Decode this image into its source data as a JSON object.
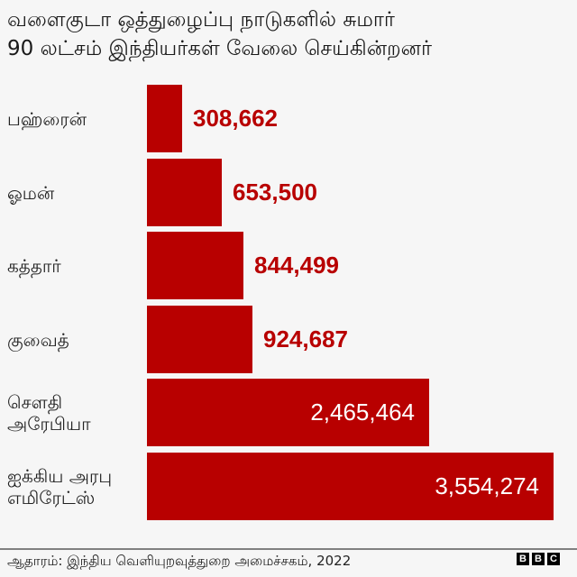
{
  "title": {
    "line1": "வளைகுடா ஒத்துழைப்பு நாடுகளில் சுமார்",
    "line2": "90 லட்சம் இந்தியர்கள் வேலை செய்கின்றனர்"
  },
  "colors": {
    "bar": "#b80000",
    "value_outside": "#b80000",
    "value_inside": "#ffffff",
    "background": "#f6f6f6"
  },
  "chart_data": {
    "type": "bar",
    "orientation": "horizontal",
    "title": "வளைகுடா ஒத்துழைப்பு நாடுகளில் சுமார் 90 லட்சம் இந்தியர்கள் வேலை செய்கின்றனர்",
    "categories": [
      "பஹ்ரைன்",
      "ஓமன்",
      "கத்தார்",
      "குவைத்",
      "சௌதி அரேபியா",
      "ஐக்கிய அரபு எமிரேட்ஸ்"
    ],
    "values": [
      308662,
      653500,
      844499,
      924687,
      2465464,
      3554274
    ],
    "value_labels": [
      "308,662",
      "653,500",
      "844,499",
      "924,687",
      "2,465,464",
      "3,554,274"
    ],
    "xlabel": "",
    "ylabel": "",
    "grid": false,
    "legend": "none",
    "source": "ஆதாரம்: இந்திய வெளியுறவுத்துறை அமைச்சகம், 2022"
  },
  "rows": [
    {
      "label_lines": [
        "பஹ்ரைன்"
      ],
      "value": "308,662",
      "amount": 308662,
      "inside": false
    },
    {
      "label_lines": [
        "ஓமன்"
      ],
      "value": "653,500",
      "amount": 653500,
      "inside": false
    },
    {
      "label_lines": [
        "கத்தார்"
      ],
      "value": "844,499",
      "amount": 844499,
      "inside": false
    },
    {
      "label_lines": [
        "குவைத்"
      ],
      "value": "924,687",
      "amount": 924687,
      "inside": false
    },
    {
      "label_lines": [
        "சௌதி",
        "அரேபியா"
      ],
      "value": "2,465,464",
      "amount": 2465464,
      "inside": true
    },
    {
      "label_lines": [
        "ஐக்கிய அரபு",
        "எமிரேட்ஸ்"
      ],
      "value": "3,554,274",
      "amount": 3554274,
      "inside": true
    }
  ],
  "footer": {
    "source": "ஆதாரம்: இந்திய வெளியுறவுத்துறை அமைச்சகம், 2022",
    "logo_letters": [
      "B",
      "B",
      "C"
    ]
  }
}
